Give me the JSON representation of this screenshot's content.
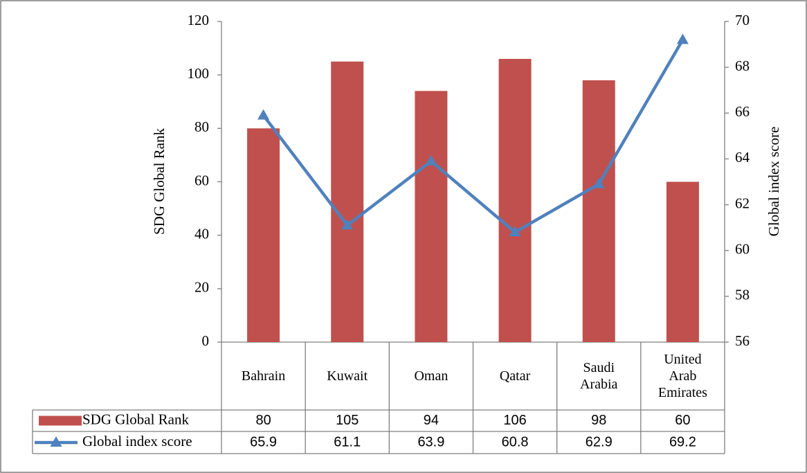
{
  "chart_data": {
    "type": "bar",
    "categories": [
      "Bahrain",
      "Kuwait",
      "Oman",
      "Qatar",
      "Saudi Arabia",
      "United Arab Emirates"
    ],
    "series": [
      {
        "name": "SDG Global Rank",
        "type": "bar",
        "color": "#c0504d",
        "values": [
          80,
          105,
          94,
          106,
          98,
          60
        ]
      },
      {
        "name": "Global index score",
        "type": "line",
        "axis": "y2",
        "color": "#4f81bd",
        "values": [
          65.9,
          61.1,
          63.9,
          60.8,
          62.9,
          69.2
        ]
      }
    ],
    "ylabel": "SDG Global Rank",
    "y2label": "Global index score",
    "ylim": [
      0,
      120
    ],
    "yticks": [
      0,
      20,
      40,
      60,
      80,
      100,
      120
    ],
    "y2lim": [
      56,
      70
    ],
    "y2ticks": [
      56,
      58,
      60,
      62,
      64,
      66,
      68,
      70
    ],
    "data_table": true
  }
}
